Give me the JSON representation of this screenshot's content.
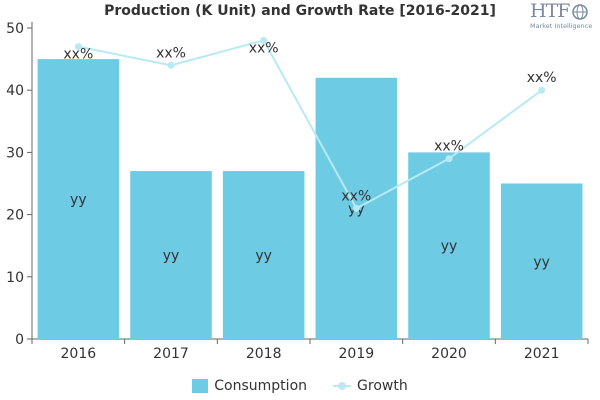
{
  "title": "Production (K Unit) and Growth Rate [2016-2021]",
  "logo": {
    "text": "HTF",
    "subtitle": "Market Intelligence"
  },
  "colors": {
    "bar": "#6ecbe4",
    "line": "#b7eaf3",
    "text": "#333333",
    "axis": "#666666"
  },
  "legend": [
    {
      "label": "Consumption",
      "type": "bar"
    },
    {
      "label": "Growth",
      "type": "line"
    }
  ],
  "chart_data": {
    "type": "bar",
    "categories": [
      "2016",
      "2017",
      "2018",
      "2019",
      "2020",
      "2021"
    ],
    "ylim": [
      0,
      50
    ],
    "yticks": [
      0,
      10,
      20,
      30,
      40,
      50
    ],
    "grid": false,
    "legend_position": "bottom",
    "series": [
      {
        "name": "Consumption",
        "type": "bar",
        "values": [
          45,
          27,
          27,
          42,
          30,
          25
        ],
        "data_labels": [
          "yy",
          "yy",
          "yy",
          "yy",
          "yy",
          "yy"
        ]
      },
      {
        "name": "Growth",
        "type": "line",
        "values": [
          47,
          44,
          48,
          21,
          29,
          40
        ],
        "data_labels": [
          "xx%",
          "xx%",
          "xx%",
          "xx%",
          "xx%",
          "xx%"
        ]
      }
    ]
  }
}
